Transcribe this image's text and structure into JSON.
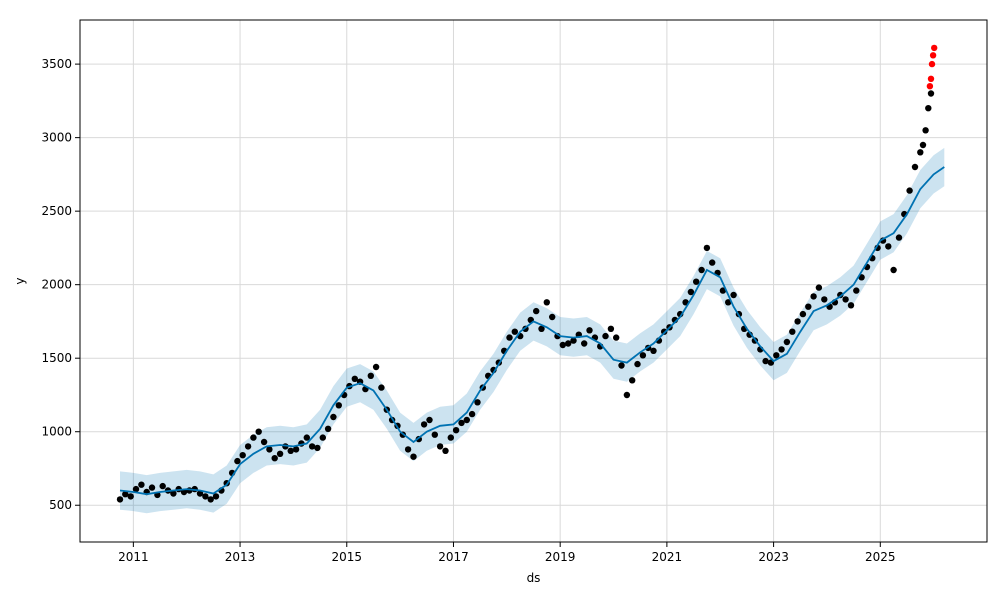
{
  "chart_data": {
    "type": "scatter",
    "title": "",
    "xlabel": "ds",
    "ylabel": "y",
    "xlim": [
      2010.0,
      2027.0
    ],
    "ylim": [
      250,
      3800
    ],
    "grid": true,
    "x_ticks": [
      2011,
      2013,
      2015,
      2017,
      2019,
      2021,
      2023,
      2025
    ],
    "x_tick_labels": [
      "2011",
      "2013",
      "2015",
      "2017",
      "2019",
      "2021",
      "2023",
      "2025"
    ],
    "y_ticks": [
      500,
      1000,
      1500,
      2000,
      2500,
      3000,
      3500
    ],
    "y_tick_labels": [
      "500",
      "1000",
      "1500",
      "2000",
      "2500",
      "3000",
      "3500"
    ],
    "colors": {
      "observed": "#000000",
      "outlier": "#ff0000",
      "forecast": "#0072b2",
      "interval": "#0072b2",
      "grid": "#d9d9d9",
      "axes": "#000000"
    },
    "series": [
      {
        "kind": "observed",
        "points": [
          [
            2010.75,
            540
          ],
          [
            2010.85,
            575
          ],
          [
            2010.95,
            560
          ],
          [
            2011.05,
            610
          ],
          [
            2011.15,
            640
          ],
          [
            2011.25,
            590
          ],
          [
            2011.35,
            620
          ],
          [
            2011.45,
            570
          ],
          [
            2011.55,
            630
          ],
          [
            2011.65,
            600
          ],
          [
            2011.75,
            580
          ],
          [
            2011.85,
            610
          ],
          [
            2011.95,
            590
          ],
          [
            2012.05,
            600
          ],
          [
            2012.15,
            610
          ],
          [
            2012.25,
            580
          ],
          [
            2012.35,
            560
          ],
          [
            2012.45,
            540
          ],
          [
            2012.55,
            560
          ],
          [
            2012.65,
            600
          ],
          [
            2012.75,
            650
          ],
          [
            2012.85,
            720
          ],
          [
            2012.95,
            800
          ],
          [
            2013.05,
            840
          ],
          [
            2013.15,
            900
          ],
          [
            2013.25,
            960
          ],
          [
            2013.35,
            1000
          ],
          [
            2013.45,
            930
          ],
          [
            2013.55,
            880
          ],
          [
            2013.65,
            820
          ],
          [
            2013.75,
            850
          ],
          [
            2013.85,
            900
          ],
          [
            2013.95,
            870
          ],
          [
            2014.05,
            880
          ],
          [
            2014.15,
            920
          ],
          [
            2014.25,
            960
          ],
          [
            2014.35,
            900
          ],
          [
            2014.45,
            890
          ],
          [
            2014.55,
            960
          ],
          [
            2014.65,
            1020
          ],
          [
            2014.75,
            1100
          ],
          [
            2014.85,
            1180
          ],
          [
            2014.95,
            1250
          ],
          [
            2015.05,
            1310
          ],
          [
            2015.15,
            1360
          ],
          [
            2015.25,
            1340
          ],
          [
            2015.35,
            1290
          ],
          [
            2015.45,
            1380
          ],
          [
            2015.55,
            1440
          ],
          [
            2015.65,
            1300
          ],
          [
            2015.75,
            1150
          ],
          [
            2015.85,
            1080
          ],
          [
            2015.95,
            1040
          ],
          [
            2016.05,
            980
          ],
          [
            2016.15,
            880
          ],
          [
            2016.25,
            830
          ],
          [
            2016.35,
            950
          ],
          [
            2016.45,
            1050
          ],
          [
            2016.55,
            1080
          ],
          [
            2016.65,
            980
          ],
          [
            2016.75,
            900
          ],
          [
            2016.85,
            870
          ],
          [
            2016.95,
            960
          ],
          [
            2017.05,
            1010
          ],
          [
            2017.15,
            1060
          ],
          [
            2017.25,
            1080
          ],
          [
            2017.35,
            1120
          ],
          [
            2017.45,
            1200
          ],
          [
            2017.55,
            1300
          ],
          [
            2017.65,
            1380
          ],
          [
            2017.75,
            1420
          ],
          [
            2017.85,
            1470
          ],
          [
            2017.95,
            1550
          ],
          [
            2018.05,
            1640
          ],
          [
            2018.15,
            1680
          ],
          [
            2018.25,
            1650
          ],
          [
            2018.35,
            1700
          ],
          [
            2018.45,
            1760
          ],
          [
            2018.55,
            1820
          ],
          [
            2018.65,
            1700
          ],
          [
            2018.75,
            1880
          ],
          [
            2018.85,
            1780
          ],
          [
            2018.95,
            1650
          ],
          [
            2019.05,
            1590
          ],
          [
            2019.15,
            1600
          ],
          [
            2019.25,
            1620
          ],
          [
            2019.35,
            1660
          ],
          [
            2019.45,
            1600
          ],
          [
            2019.55,
            1690
          ],
          [
            2019.65,
            1640
          ],
          [
            2019.75,
            1580
          ],
          [
            2019.85,
            1650
          ],
          [
            2019.95,
            1700
          ],
          [
            2020.05,
            1640
          ],
          [
            2020.15,
            1450
          ],
          [
            2020.25,
            1250
          ],
          [
            2020.35,
            1350
          ],
          [
            2020.45,
            1460
          ],
          [
            2020.55,
            1520
          ],
          [
            2020.65,
            1570
          ],
          [
            2020.75,
            1550
          ],
          [
            2020.85,
            1620
          ],
          [
            2020.95,
            1680
          ],
          [
            2021.05,
            1710
          ],
          [
            2021.15,
            1760
          ],
          [
            2021.25,
            1800
          ],
          [
            2021.35,
            1880
          ],
          [
            2021.45,
            1950
          ],
          [
            2021.55,
            2020
          ],
          [
            2021.65,
            2100
          ],
          [
            2021.75,
            2250
          ],
          [
            2021.85,
            2150
          ],
          [
            2021.95,
            2080
          ],
          [
            2022.05,
            1960
          ],
          [
            2022.15,
            1880
          ],
          [
            2022.25,
            1930
          ],
          [
            2022.35,
            1800
          ],
          [
            2022.45,
            1700
          ],
          [
            2022.55,
            1660
          ],
          [
            2022.65,
            1620
          ],
          [
            2022.75,
            1560
          ],
          [
            2022.85,
            1480
          ],
          [
            2022.95,
            1470
          ],
          [
            2023.05,
            1520
          ],
          [
            2023.15,
            1560
          ],
          [
            2023.25,
            1610
          ],
          [
            2023.35,
            1680
          ],
          [
            2023.45,
            1750
          ],
          [
            2023.55,
            1800
          ],
          [
            2023.65,
            1850
          ],
          [
            2023.75,
            1920
          ],
          [
            2023.85,
            1980
          ],
          [
            2023.95,
            1900
          ],
          [
            2024.05,
            1850
          ],
          [
            2024.15,
            1880
          ],
          [
            2024.25,
            1930
          ],
          [
            2024.35,
            1900
          ],
          [
            2024.45,
            1860
          ],
          [
            2024.55,
            1960
          ],
          [
            2024.65,
            2050
          ],
          [
            2024.75,
            2120
          ],
          [
            2024.85,
            2180
          ],
          [
            2024.95,
            2250
          ],
          [
            2025.05,
            2300
          ],
          [
            2025.15,
            2260
          ],
          [
            2025.25,
            2100
          ],
          [
            2025.35,
            2320
          ],
          [
            2025.45,
            2480
          ],
          [
            2025.55,
            2640
          ],
          [
            2025.65,
            2800
          ],
          [
            2025.75,
            2900
          ],
          [
            2025.8,
            2950
          ],
          [
            2025.85,
            3050
          ],
          [
            2025.9,
            3200
          ],
          [
            2025.95,
            3300
          ]
        ]
      },
      {
        "kind": "outlier",
        "points": [
          [
            2025.93,
            3350
          ],
          [
            2025.95,
            3400
          ],
          [
            2025.97,
            3500
          ],
          [
            2025.99,
            3560
          ],
          [
            2026.01,
            3610
          ]
        ]
      },
      {
        "kind": "forecast",
        "x": [
          2010.75,
          2011.0,
          2011.25,
          2011.5,
          2011.75,
          2012.0,
          2012.25,
          2012.5,
          2012.75,
          2013.0,
          2013.25,
          2013.5,
          2013.75,
          2014.0,
          2014.25,
          2014.5,
          2014.75,
          2015.0,
          2015.25,
          2015.5,
          2015.75,
          2016.0,
          2016.25,
          2016.5,
          2016.75,
          2017.0,
          2017.25,
          2017.5,
          2017.75,
          2018.0,
          2018.25,
          2018.5,
          2018.75,
          2019.0,
          2019.25,
          2019.5,
          2019.75,
          2020.0,
          2020.25,
          2020.5,
          2020.75,
          2021.0,
          2021.25,
          2021.5,
          2021.75,
          2022.0,
          2022.25,
          2022.5,
          2022.75,
          2023.0,
          2023.25,
          2023.5,
          2023.75,
          2024.0,
          2024.25,
          2024.5,
          2024.75,
          2025.0,
          2025.25,
          2025.5,
          2025.75,
          2026.0,
          2026.2
        ],
        "y": [
          600,
          590,
          575,
          590,
          600,
          610,
          600,
          580,
          640,
          780,
          850,
          900,
          910,
          900,
          920,
          1020,
          1180,
          1300,
          1330,
          1280,
          1150,
          1000,
          930,
          1000,
          1040,
          1050,
          1130,
          1280,
          1400,
          1550,
          1680,
          1750,
          1710,
          1650,
          1640,
          1650,
          1600,
          1490,
          1470,
          1540,
          1600,
          1690,
          1780,
          1930,
          2100,
          2050,
          1850,
          1700,
          1580,
          1480,
          1530,
          1680,
          1820,
          1860,
          1920,
          2000,
          2150,
          2300,
          2350,
          2480,
          2650,
          2750,
          2800
        ],
        "lower": [
          470,
          460,
          445,
          460,
          470,
          480,
          470,
          450,
          510,
          650,
          720,
          770,
          780,
          770,
          790,
          890,
          1050,
          1170,
          1200,
          1150,
          1020,
          870,
          800,
          870,
          910,
          920,
          1000,
          1150,
          1270,
          1420,
          1550,
          1620,
          1580,
          1520,
          1510,
          1520,
          1470,
          1360,
          1340,
          1410,
          1470,
          1560,
          1650,
          1800,
          1970,
          1920,
          1720,
          1570,
          1450,
          1350,
          1400,
          1550,
          1690,
          1730,
          1790,
          1870,
          2020,
          2170,
          2220,
          2350,
          2520,
          2620,
          2670
        ],
        "upper": [
          730,
          720,
          705,
          720,
          730,
          740,
          730,
          710,
          770,
          910,
          980,
          1030,
          1040,
          1030,
          1050,
          1150,
          1310,
          1430,
          1460,
          1410,
          1280,
          1130,
          1060,
          1130,
          1170,
          1180,
          1260,
          1410,
          1530,
          1680,
          1810,
          1880,
          1840,
          1780,
          1770,
          1780,
          1730,
          1620,
          1600,
          1670,
          1730,
          1820,
          1910,
          2060,
          2230,
          2180,
          1980,
          1830,
          1710,
          1610,
          1660,
          1810,
          1950,
          1990,
          2050,
          2130,
          2280,
          2430,
          2480,
          2610,
          2780,
          2880,
          2930
        ]
      }
    ]
  }
}
